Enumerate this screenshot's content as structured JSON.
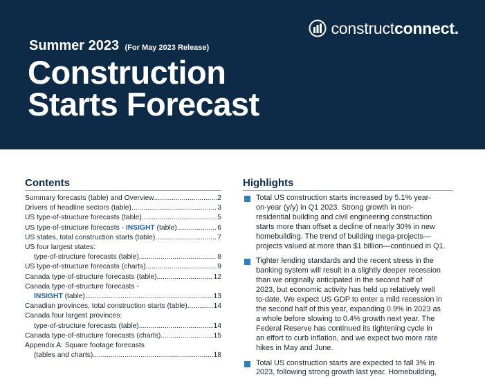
{
  "brand": {
    "name_light": "construct",
    "name_bold": "connect",
    "trademark": "."
  },
  "header": {
    "season": "Summer 2023",
    "release": "(For May 2023 Release)",
    "title_lines": [
      "Construction",
      "Starts Forecast"
    ]
  },
  "contents": {
    "heading": "Contents",
    "items": [
      {
        "title": "Summary forecasts (table) and Overview",
        "page": "2"
      },
      {
        "title": "Drivers of headline sectors (table)",
        "page": "3"
      },
      {
        "title": "US type-of-structure forecasts (table)",
        "page": "5"
      },
      {
        "title_pre": "US type-of-structure forecasts - ",
        "title_insight": "INSIGHT",
        "title_post": " (table)",
        "page": "6"
      },
      {
        "title": "US states, total construction starts (table)",
        "page": "7"
      },
      {
        "title": "US four largest states:",
        "title2": "type-of-structure forecasts (table)",
        "page": "8"
      },
      {
        "title": "US type-of-structure forecasts (charts)",
        "page": "9"
      },
      {
        "title": "Canada type-of-structure forecasts (table)",
        "page": "12"
      },
      {
        "title": "Canada type-of-structure forecasts -",
        "title_insight": "INSIGHT",
        "title_post": " (table)",
        "page": "13"
      },
      {
        "title": "Canadian provinces, total construction starts (table)",
        "page": "14"
      },
      {
        "title": "Canada four largest provinces:",
        "title2": "type-of-structure forecasts (table)",
        "page": "14"
      },
      {
        "title": "Canada type-of-structure forecasts (charts)",
        "page": "15"
      },
      {
        "title": "Appendix A: Square footage forecasts",
        "title2": "(tables and charts)",
        "page": "18"
      }
    ]
  },
  "highlights": {
    "heading": "Highlights",
    "items": [
      {
        "lines": [
          "Total US construction starts increased by 5.1% year-",
          "on-year (y/y) in Q1 2023. Strong growth in non-",
          "residential building and civil engineering construction",
          "starts more than offset a decline of nearly 30% in new",
          "homebuilding. The trend of building mega-projects—",
          "projects valued at more than $1 billion—continued in Q1."
        ]
      },
      {
        "lines": [
          "Tighter lending standards and the recent stress in the",
          "banking system will result in a slightly deeper recession",
          "than we originally anticipated in the second half of",
          "2023, but economic activity has held up relatively well",
          "to-date. We expect US GDP to enter a mild recession in",
          "the second half of this year, expanding 0.9% in 2023 as",
          "a whole before slowing to 0.4% growth next year. The",
          "Federal Reserve has continued its tightening cycle in",
          "an effort to curb inflation, and we expect two more rate",
          "hikes in May and June."
        ]
      },
      {
        "lines": [
          "Total US construction starts are expected to fall 3% in",
          "2023, following strong growth last year. Homebuilding,"
        ]
      }
    ]
  }
}
